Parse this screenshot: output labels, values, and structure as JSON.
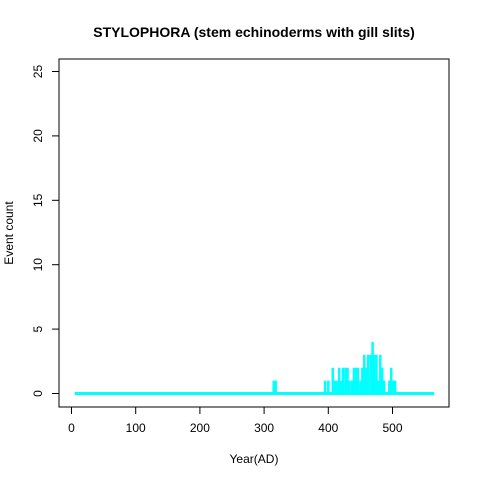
{
  "chart_data": {
    "type": "bar",
    "title": "STYLOPHORA (stem echinoderms with gill slits)",
    "xlabel": "Year(AD)",
    "ylabel": "Event count",
    "xlim": [
      5,
      565
    ],
    "ylim": [
      0,
      25
    ],
    "x_ticks": [
      0,
      100,
      200,
      300,
      400,
      500
    ],
    "y_ticks": [
      0,
      5,
      10,
      15,
      20,
      25
    ],
    "grid": false,
    "legend": "none",
    "colors": {
      "series": "#00ffff",
      "axes": "#000000",
      "background": "#ffffff"
    },
    "points": [
      {
        "x": 315,
        "y": 1
      },
      {
        "x": 318,
        "y": 1
      },
      {
        "x": 395,
        "y": 1
      },
      {
        "x": 400,
        "y": 1
      },
      {
        "x": 407,
        "y": 2
      },
      {
        "x": 410,
        "y": 1
      },
      {
        "x": 413,
        "y": 1
      },
      {
        "x": 417,
        "y": 2
      },
      {
        "x": 420,
        "y": 1
      },
      {
        "x": 423,
        "y": 2
      },
      {
        "x": 427,
        "y": 2
      },
      {
        "x": 430,
        "y": 2
      },
      {
        "x": 433,
        "y": 1
      },
      {
        "x": 437,
        "y": 1
      },
      {
        "x": 440,
        "y": 2
      },
      {
        "x": 443,
        "y": 2
      },
      {
        "x": 446,
        "y": 2
      },
      {
        "x": 450,
        "y": 1
      },
      {
        "x": 453,
        "y": 2
      },
      {
        "x": 456,
        "y": 3
      },
      {
        "x": 459,
        "y": 2
      },
      {
        "x": 462,
        "y": 3
      },
      {
        "x": 466,
        "y": 3
      },
      {
        "x": 469,
        "y": 4
      },
      {
        "x": 472,
        "y": 3
      },
      {
        "x": 475,
        "y": 3
      },
      {
        "x": 478,
        "y": 1
      },
      {
        "x": 481,
        "y": 3
      },
      {
        "x": 484,
        "y": 2
      },
      {
        "x": 487,
        "y": 1
      },
      {
        "x": 495,
        "y": 1
      },
      {
        "x": 498,
        "y": 2
      },
      {
        "x": 501,
        "y": 1
      },
      {
        "x": 504,
        "y": 1
      }
    ]
  }
}
